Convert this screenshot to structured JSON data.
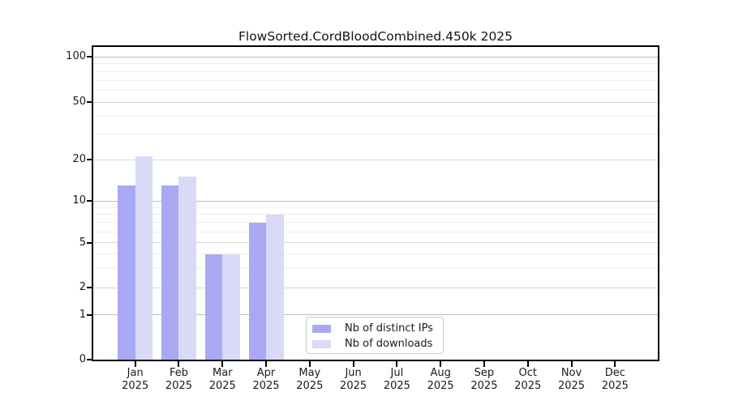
{
  "chart_data": {
    "type": "bar",
    "title": "FlowSorted.CordBloodCombined.450k 2025",
    "categories": [
      "Jan",
      "Feb",
      "Mar",
      "Apr",
      "May",
      "Jun",
      "Jul",
      "Aug",
      "Sep",
      "Oct",
      "Nov",
      "Dec"
    ],
    "category_year": "2025",
    "series": [
      {
        "name": "Nb of distinct IPs",
        "color": "#a9a9f3",
        "values": [
          13,
          13,
          4,
          7,
          0,
          0,
          0,
          0,
          0,
          0,
          0,
          0
        ]
      },
      {
        "name": "Nb of downloads",
        "color": "#d9d9f8",
        "values": [
          21,
          15,
          4,
          8,
          0,
          0,
          0,
          0,
          0,
          0,
          0,
          0
        ]
      }
    ],
    "xlabel": "",
    "ylabel": "",
    "ylim": [
      0,
      117
    ],
    "y_ticks": [
      0,
      1,
      2,
      5,
      10,
      20,
      50,
      100
    ],
    "y_major_ticks": [
      1,
      10,
      100
    ],
    "y_minor_gridlines": [
      3,
      4,
      6,
      7,
      8,
      9,
      30,
      40,
      60,
      70,
      80,
      90
    ],
    "y_scale_anchors": [
      [
        0,
        0
      ],
      [
        1,
        0.1425
      ],
      [
        2,
        0.2293
      ],
      [
        5,
        0.3731
      ],
      [
        10,
        0.507
      ],
      [
        20,
        0.6394
      ],
      [
        50,
        0.8238
      ],
      [
        100,
        0.9679
      ]
    ],
    "grid": true,
    "legend_position": "lower center",
    "background": "#ffffff"
  }
}
